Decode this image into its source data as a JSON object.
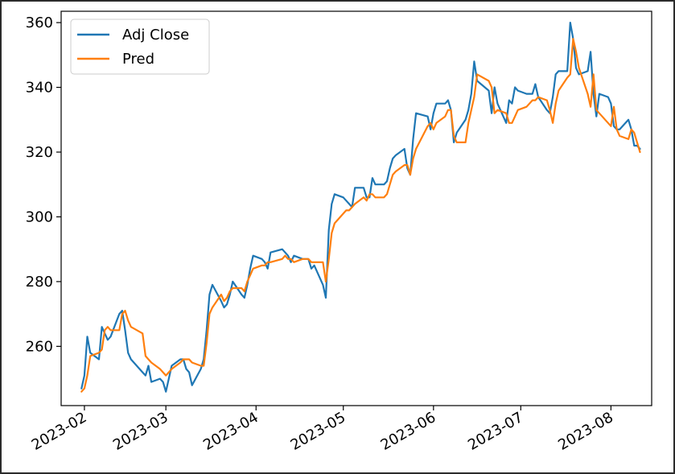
{
  "chart_data": {
    "type": "line",
    "title": "",
    "xlabel": "",
    "ylabel": "",
    "xlim": [
      "2023-01-24",
      "2023-08-15"
    ],
    "ylim": [
      241.7,
      363.5
    ],
    "grid": false,
    "legend_position": "top-left",
    "x_ticks": [
      "2023-02",
      "2023-03",
      "2023-04",
      "2023-05",
      "2023-06",
      "2023-07",
      "2023-08"
    ],
    "y_ticks": [
      260,
      280,
      300,
      320,
      340,
      360
    ],
    "colors": {
      "Adj Close": "#1f77b4",
      "Pred": "#ff7f0e"
    },
    "series": [
      {
        "name": "Adj Close",
        "points": [
          [
            "2023-01-31",
            247
          ],
          [
            "2023-02-01",
            251
          ],
          [
            "2023-02-02",
            263
          ],
          [
            "2023-02-03",
            258
          ],
          [
            "2023-02-06",
            256
          ],
          [
            "2023-02-07",
            266
          ],
          [
            "2023-02-08",
            264
          ],
          [
            "2023-02-09",
            262
          ],
          [
            "2023-02-10",
            263
          ],
          [
            "2023-02-13",
            270
          ],
          [
            "2023-02-14",
            271
          ],
          [
            "2023-02-15",
            265
          ],
          [
            "2023-02-16",
            258
          ],
          [
            "2023-02-17",
            256
          ],
          [
            "2023-02-21",
            252
          ],
          [
            "2023-02-22",
            251
          ],
          [
            "2023-02-23",
            254
          ],
          [
            "2023-02-24",
            249
          ],
          [
            "2023-02-27",
            250
          ],
          [
            "2023-02-28",
            249
          ],
          [
            "2023-03-01",
            246
          ],
          [
            "2023-03-02",
            250
          ],
          [
            "2023-03-03",
            254
          ],
          [
            "2023-03-06",
            256
          ],
          [
            "2023-03-07",
            256
          ],
          [
            "2023-03-08",
            253
          ],
          [
            "2023-03-09",
            252
          ],
          [
            "2023-03-10",
            248
          ],
          [
            "2023-03-13",
            253
          ],
          [
            "2023-03-14",
            256
          ],
          [
            "2023-03-15",
            265
          ],
          [
            "2023-03-16",
            276
          ],
          [
            "2023-03-17",
            279
          ],
          [
            "2023-03-20",
            274
          ],
          [
            "2023-03-21",
            272
          ],
          [
            "2023-03-22",
            273
          ],
          [
            "2023-03-23",
            276
          ],
          [
            "2023-03-24",
            280
          ],
          [
            "2023-03-27",
            276
          ],
          [
            "2023-03-28",
            275
          ],
          [
            "2023-03-29",
            279
          ],
          [
            "2023-03-30",
            284
          ],
          [
            "2023-03-31",
            288
          ],
          [
            "2023-04-03",
            287
          ],
          [
            "2023-04-04",
            286
          ],
          [
            "2023-04-05",
            284
          ],
          [
            "2023-04-06",
            289
          ],
          [
            "2023-04-10",
            290
          ],
          [
            "2023-04-11",
            289
          ],
          [
            "2023-04-12",
            288
          ],
          [
            "2023-04-13",
            286
          ],
          [
            "2023-04-14",
            288
          ],
          [
            "2023-04-17",
            287
          ],
          [
            "2023-04-18",
            287
          ],
          [
            "2023-04-19",
            287
          ],
          [
            "2023-04-20",
            284
          ],
          [
            "2023-04-21",
            285
          ],
          [
            "2023-04-24",
            279
          ],
          [
            "2023-04-25",
            275
          ],
          [
            "2023-04-26",
            296
          ],
          [
            "2023-04-27",
            304
          ],
          [
            "2023-04-28",
            307
          ],
          [
            "2023-05-01",
            306
          ],
          [
            "2023-05-02",
            305
          ],
          [
            "2023-05-03",
            304
          ],
          [
            "2023-05-04",
            303
          ],
          [
            "2023-05-05",
            309
          ],
          [
            "2023-05-08",
            309
          ],
          [
            "2023-05-09",
            306
          ],
          [
            "2023-05-10",
            306
          ],
          [
            "2023-05-11",
            312
          ],
          [
            "2023-05-12",
            310
          ],
          [
            "2023-05-15",
            310
          ],
          [
            "2023-05-16",
            311
          ],
          [
            "2023-05-17",
            315
          ],
          [
            "2023-05-18",
            318
          ],
          [
            "2023-05-19",
            319
          ],
          [
            "2023-05-22",
            321
          ],
          [
            "2023-05-23",
            315
          ],
          [
            "2023-05-24",
            313
          ],
          [
            "2023-05-25",
            324
          ],
          [
            "2023-05-26",
            332
          ],
          [
            "2023-05-30",
            331
          ],
          [
            "2023-05-31",
            327
          ],
          [
            "2023-06-01",
            332
          ],
          [
            "2023-06-02",
            335
          ],
          [
            "2023-06-05",
            335
          ],
          [
            "2023-06-06",
            336
          ],
          [
            "2023-06-07",
            333
          ],
          [
            "2023-06-08",
            323
          ],
          [
            "2023-06-09",
            326
          ],
          [
            "2023-06-12",
            330
          ],
          [
            "2023-06-13",
            333
          ],
          [
            "2023-06-14",
            338
          ],
          [
            "2023-06-15",
            348
          ],
          [
            "2023-06-16",
            342
          ],
          [
            "2023-06-20",
            339
          ],
          [
            "2023-06-21",
            332
          ],
          [
            "2023-06-22",
            340
          ],
          [
            "2023-06-23",
            335
          ],
          [
            "2023-06-26",
            329
          ],
          [
            "2023-06-27",
            336
          ],
          [
            "2023-06-28",
            335
          ],
          [
            "2023-06-29",
            340
          ],
          [
            "2023-06-30",
            339
          ],
          [
            "2023-07-03",
            338
          ],
          [
            "2023-07-05",
            338
          ],
          [
            "2023-07-06",
            341
          ],
          [
            "2023-07-07",
            337
          ],
          [
            "2023-07-10",
            333
          ],
          [
            "2023-07-11",
            332
          ],
          [
            "2023-07-12",
            337
          ],
          [
            "2023-07-13",
            344
          ],
          [
            "2023-07-14",
            345
          ],
          [
            "2023-07-17",
            345
          ],
          [
            "2023-07-18",
            360
          ],
          [
            "2023-07-19",
            355
          ],
          [
            "2023-07-20",
            346
          ],
          [
            "2023-07-21",
            344
          ],
          [
            "2023-07-24",
            345
          ],
          [
            "2023-07-25",
            351
          ],
          [
            "2023-07-26",
            338
          ],
          [
            "2023-07-27",
            331
          ],
          [
            "2023-07-28",
            338
          ],
          [
            "2023-07-31",
            337
          ],
          [
            "2023-08-01",
            335
          ],
          [
            "2023-08-02",
            328
          ],
          [
            "2023-08-03",
            327
          ],
          [
            "2023-08-04",
            327
          ],
          [
            "2023-08-07",
            330
          ],
          [
            "2023-08-08",
            327
          ],
          [
            "2023-08-09",
            322
          ],
          [
            "2023-08-10",
            322
          ],
          [
            "2023-08-11",
            321
          ]
        ]
      },
      {
        "name": "Pred",
        "points": [
          [
            "2023-01-31",
            246
          ],
          [
            "2023-02-01",
            247
          ],
          [
            "2023-02-02",
            251
          ],
          [
            "2023-02-03",
            257
          ],
          [
            "2023-02-06",
            258
          ],
          [
            "2023-02-07",
            259
          ],
          [
            "2023-02-08",
            265
          ],
          [
            "2023-02-09",
            266
          ],
          [
            "2023-02-10",
            265
          ],
          [
            "2023-02-13",
            265
          ],
          [
            "2023-02-14",
            270
          ],
          [
            "2023-02-15",
            271
          ],
          [
            "2023-02-16",
            268
          ],
          [
            "2023-02-17",
            266
          ],
          [
            "2023-02-21",
            264
          ],
          [
            "2023-02-22",
            257
          ],
          [
            "2023-02-23",
            256
          ],
          [
            "2023-02-24",
            255
          ],
          [
            "2023-02-27",
            253
          ],
          [
            "2023-02-28",
            252
          ],
          [
            "2023-03-01",
            251
          ],
          [
            "2023-03-02",
            252
          ],
          [
            "2023-03-03",
            253
          ],
          [
            "2023-03-06",
            255
          ],
          [
            "2023-03-07",
            256
          ],
          [
            "2023-03-08",
            256
          ],
          [
            "2023-03-09",
            256
          ],
          [
            "2023-03-10",
            255
          ],
          [
            "2023-03-13",
            254
          ],
          [
            "2023-03-14",
            254
          ],
          [
            "2023-03-15",
            261
          ],
          [
            "2023-03-16",
            270
          ],
          [
            "2023-03-17",
            272
          ],
          [
            "2023-03-20",
            276
          ],
          [
            "2023-03-21",
            274
          ],
          [
            "2023-03-22",
            275
          ],
          [
            "2023-03-23",
            277
          ],
          [
            "2023-03-24",
            278
          ],
          [
            "2023-03-27",
            278
          ],
          [
            "2023-03-28",
            277
          ],
          [
            "2023-03-29",
            280
          ],
          [
            "2023-03-30",
            282
          ],
          [
            "2023-03-31",
            284
          ],
          [
            "2023-04-03",
            285
          ],
          [
            "2023-04-04",
            285
          ],
          [
            "2023-04-05",
            286
          ],
          [
            "2023-04-06",
            286
          ],
          [
            "2023-04-10",
            287
          ],
          [
            "2023-04-11",
            288
          ],
          [
            "2023-04-12",
            287
          ],
          [
            "2023-04-13",
            287
          ],
          [
            "2023-04-14",
            286
          ],
          [
            "2023-04-17",
            287
          ],
          [
            "2023-04-18",
            287
          ],
          [
            "2023-04-19",
            287
          ],
          [
            "2023-04-20",
            286
          ],
          [
            "2023-04-21",
            286
          ],
          [
            "2023-04-24",
            286
          ],
          [
            "2023-04-25",
            280
          ],
          [
            "2023-04-26",
            287
          ],
          [
            "2023-04-27",
            295
          ],
          [
            "2023-04-28",
            298
          ],
          [
            "2023-05-01",
            301
          ],
          [
            "2023-05-02",
            302
          ],
          [
            "2023-05-03",
            302
          ],
          [
            "2023-05-04",
            303
          ],
          [
            "2023-05-05",
            304
          ],
          [
            "2023-05-08",
            306
          ],
          [
            "2023-05-09",
            305
          ],
          [
            "2023-05-10",
            307
          ],
          [
            "2023-05-11",
            307
          ],
          [
            "2023-05-12",
            306
          ],
          [
            "2023-05-15",
            306
          ],
          [
            "2023-05-16",
            307
          ],
          [
            "2023-05-17",
            310
          ],
          [
            "2023-05-18",
            313
          ],
          [
            "2023-05-19",
            314
          ],
          [
            "2023-05-22",
            316
          ],
          [
            "2023-05-23",
            316
          ],
          [
            "2023-05-24",
            313
          ],
          [
            "2023-05-25",
            318
          ],
          [
            "2023-05-26",
            321
          ],
          [
            "2023-05-30",
            328
          ],
          [
            "2023-05-31",
            329
          ],
          [
            "2023-06-01",
            327
          ],
          [
            "2023-06-02",
            329
          ],
          [
            "2023-06-05",
            331
          ],
          [
            "2023-06-06",
            333
          ],
          [
            "2023-06-07",
            333
          ],
          [
            "2023-06-08",
            325
          ],
          [
            "2023-06-09",
            323
          ],
          [
            "2023-06-12",
            323
          ],
          [
            "2023-06-13",
            329
          ],
          [
            "2023-06-14",
            333
          ],
          [
            "2023-06-15",
            337
          ],
          [
            "2023-06-16",
            344
          ],
          [
            "2023-06-20",
            342
          ],
          [
            "2023-06-21",
            340
          ],
          [
            "2023-06-22",
            332
          ],
          [
            "2023-06-23",
            333
          ],
          [
            "2023-06-26",
            332
          ],
          [
            "2023-06-27",
            329
          ],
          [
            "2023-06-28",
            329
          ],
          [
            "2023-06-29",
            331
          ],
          [
            "2023-06-30",
            333
          ],
          [
            "2023-07-03",
            334
          ],
          [
            "2023-07-05",
            336
          ],
          [
            "2023-07-06",
            336
          ],
          [
            "2023-07-07",
            337
          ],
          [
            "2023-07-10",
            336
          ],
          [
            "2023-07-11",
            333
          ],
          [
            "2023-07-12",
            329
          ],
          [
            "2023-07-13",
            335
          ],
          [
            "2023-07-14",
            339
          ],
          [
            "2023-07-17",
            343
          ],
          [
            "2023-07-18",
            344
          ],
          [
            "2023-07-19",
            355
          ],
          [
            "2023-07-20",
            351
          ],
          [
            "2023-07-21",
            346
          ],
          [
            "2023-07-24",
            338
          ],
          [
            "2023-07-25",
            334
          ],
          [
            "2023-07-26",
            344
          ],
          [
            "2023-07-27",
            333
          ],
          [
            "2023-07-28",
            332
          ],
          [
            "2023-07-31",
            329
          ],
          [
            "2023-08-01",
            328
          ],
          [
            "2023-08-02",
            334
          ],
          [
            "2023-08-03",
            327
          ],
          [
            "2023-08-04",
            325
          ],
          [
            "2023-08-07",
            324
          ],
          [
            "2023-08-08",
            327
          ],
          [
            "2023-08-09",
            326
          ],
          [
            "2023-08-10",
            323
          ],
          [
            "2023-08-11",
            320
          ]
        ]
      }
    ]
  }
}
